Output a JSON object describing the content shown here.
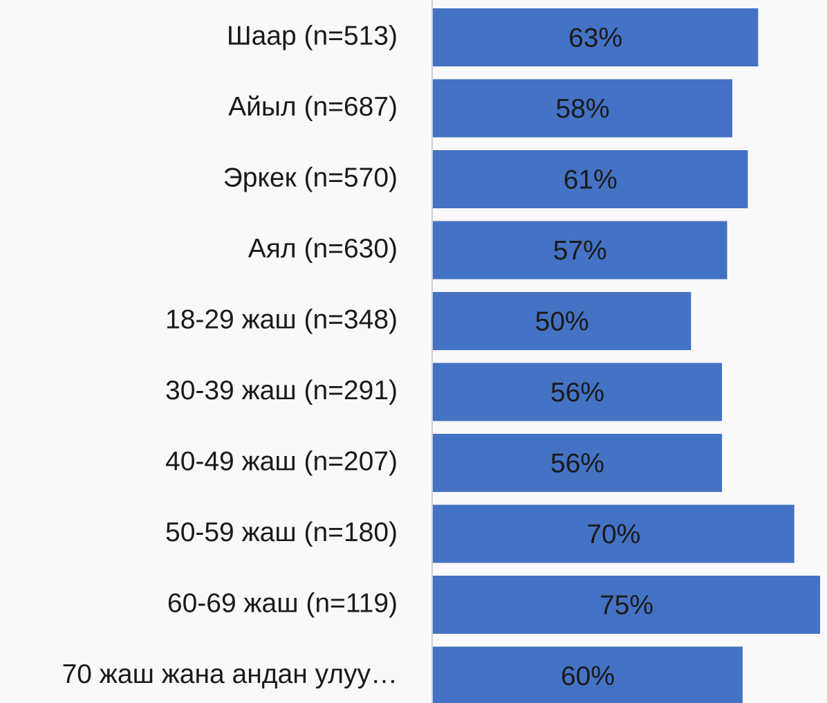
{
  "chart_data": {
    "type": "hbar",
    "categories": [
      "Шаар (n=513)",
      "Айыл (n=687)",
      "Эркек (n=570)",
      "Аял (n=630)",
      "18-29 жаш (n=348)",
      "30-39 жаш (n=291)",
      "40-49 жаш (n=207)",
      "50-59 жаш (n=180)",
      "60-69 жаш (n=119)",
      "70 жаш жана андан улуу…"
    ],
    "values": [
      63,
      58,
      61,
      57,
      50,
      56,
      56,
      70,
      75,
      60
    ],
    "value_labels": [
      "63%",
      "58%",
      "61%",
      "57%",
      "50%",
      "56%",
      "56%",
      "70%",
      "75%",
      "60%"
    ],
    "color": "#4472c4"
  }
}
